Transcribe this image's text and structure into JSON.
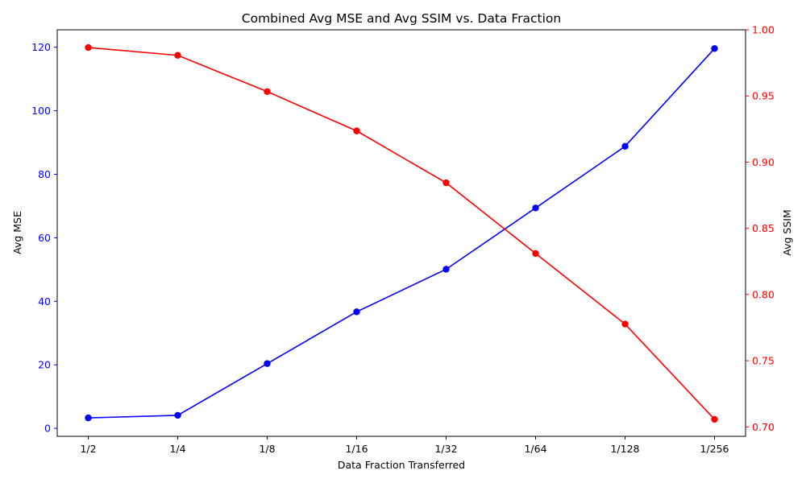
{
  "colors": {
    "mse": "#0000ff",
    "ssim": "#ff0000",
    "axis": "#000000",
    "background": "#ffffff"
  },
  "chart_data": {
    "type": "line",
    "title": "Combined Avg MSE and Avg SSIM vs. Data Fraction",
    "xlabel": "Data Fraction Transferred",
    "categories": [
      "1/2",
      "1/4",
      "1/8",
      "1/16",
      "1/32",
      "1/64",
      "1/128",
      "1/256"
    ],
    "grid": false,
    "marker": "circle",
    "series": [
      {
        "name": "Avg MSE",
        "axis": "left",
        "color": "#0000ff",
        "values": [
          3.3,
          4.1,
          20.4,
          36.7,
          50.1,
          69.4,
          88.8,
          119.6
        ]
      },
      {
        "name": "Avg SSIM",
        "axis": "right",
        "color": "#ff0000",
        "values": [
          0.9866,
          0.9807,
          0.9533,
          0.9236,
          0.8844,
          0.831,
          0.7777,
          0.7057
        ]
      }
    ],
    "y_left": {
      "label": "Avg MSE",
      "ylim": [
        -2.5,
        125.5
      ],
      "ticks": [
        0,
        20,
        40,
        60,
        80,
        100,
        120
      ],
      "tick_labels": [
        "0",
        "20",
        "40",
        "60",
        "80",
        "100",
        "120"
      ]
    },
    "y_right": {
      "label": "Avg SSIM",
      "ylim": [
        0.6929,
        1.0
      ],
      "ticks": [
        0.7,
        0.75,
        0.8,
        0.85,
        0.9,
        0.95,
        1.0
      ],
      "tick_labels": [
        "0.70",
        "0.75",
        "0.80",
        "0.85",
        "0.90",
        "0.95",
        "1.00"
      ]
    }
  }
}
